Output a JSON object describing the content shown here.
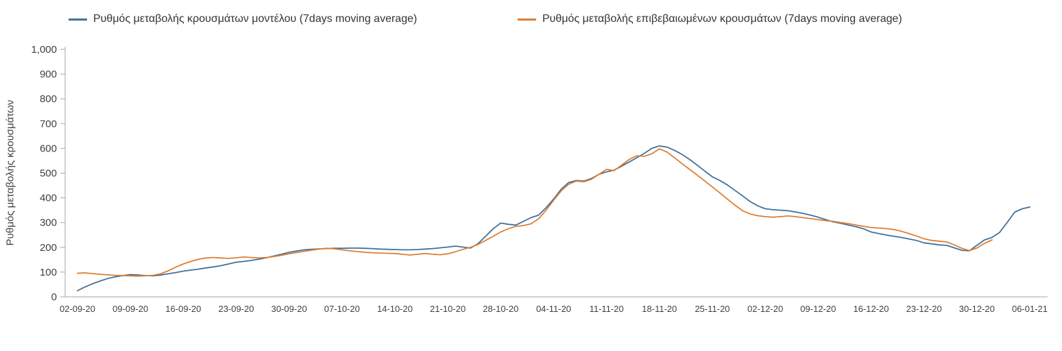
{
  "chart_data": {
    "type": "line",
    "title": "",
    "xlabel": "",
    "ylabel": "Ρυθμός μεταβολής κρουσμάτων",
    "ylim": [
      0,
      1000
    ],
    "ytick_step": 100,
    "grid": false,
    "legend_position": "top",
    "axis_color": "#a6a6a6",
    "x_tick_labels": [
      "02-09-20",
      "09-09-20",
      "16-09-20",
      "23-09-20",
      "30-09-20",
      "07-10-20",
      "14-10-20",
      "21-10-20",
      "28-10-20",
      "04-11-20",
      "11-11-20",
      "18-11-20",
      "25-11-20",
      "02-12-20",
      "09-12-20",
      "16-12-20",
      "23-12-20",
      "30-12-20",
      "06-01-21"
    ],
    "x_tick_days": [
      0,
      7,
      14,
      21,
      28,
      35,
      42,
      49,
      56,
      63,
      70,
      77,
      84,
      91,
      98,
      105,
      112,
      119,
      126
    ],
    "series": [
      {
        "name": "Ρυθμός μεταβολής κρουσμάτων μοντέλου (7days moving average)",
        "color": "#41719C",
        "start_day": 0,
        "values": [
          25,
          40,
          53,
          64,
          74,
          81,
          86,
          90,
          88,
          86,
          85,
          88,
          93,
          98,
          104,
          108,
          112,
          117,
          121,
          126,
          133,
          140,
          143,
          147,
          152,
          158,
          165,
          172,
          180,
          185,
          190,
          192,
          194,
          195,
          196,
          196,
          197,
          197,
          196,
          195,
          193,
          192,
          191,
          190,
          190,
          191,
          193,
          195,
          198,
          201,
          205,
          201,
          197,
          215,
          245,
          275,
          298,
          293,
          290,
          305,
          320,
          330,
          360,
          395,
          435,
          462,
          470,
          468,
          478,
          495,
          505,
          512,
          528,
          545,
          562,
          580,
          600,
          610,
          605,
          592,
          575,
          555,
          532,
          508,
          485,
          470,
          452,
          430,
          408,
          385,
          368,
          356,
          352,
          350,
          348,
          343,
          337,
          330,
          322,
          312,
          303,
          297,
          290,
          283,
          275,
          262,
          256,
          250,
          245,
          240,
          234,
          228,
          218,
          214,
          210,
          208,
          198,
          188,
          186,
          208,
          230,
          240,
          260,
          300,
          342,
          356,
          363
        ]
      },
      {
        "name": "Ρυθμός μεταβολής επιβεβαιωμένων κρουσμάτων (7days moving average)",
        "color": "#DE7E32",
        "start_day": 0,
        "values": [
          95,
          97,
          94,
          91,
          89,
          87,
          86,
          85,
          84,
          85,
          87,
          93,
          105,
          120,
          133,
          143,
          152,
          157,
          159,
          157,
          155,
          158,
          161,
          159,
          157,
          159,
          163,
          168,
          174,
          179,
          184,
          189,
          193,
          196,
          194,
          190,
          186,
          183,
          180,
          178,
          177,
          176,
          175,
          172,
          169,
          172,
          175,
          172,
          170,
          174,
          182,
          192,
          200,
          212,
          228,
          245,
          262,
          275,
          285,
          288,
          295,
          315,
          350,
          390,
          428,
          455,
          468,
          465,
          475,
          495,
          515,
          510,
          532,
          555,
          570,
          568,
          578,
          598,
          585,
          562,
          538,
          515,
          492,
          468,
          444,
          420,
          395,
          370,
          348,
          335,
          328,
          324,
          322,
          324,
          327,
          324,
          320,
          316,
          312,
          308,
          305,
          300,
          296,
          290,
          285,
          280,
          278,
          276,
          272,
          265,
          256,
          246,
          235,
          228,
          225,
          222,
          210,
          196,
          187,
          197,
          216,
          230
        ]
      }
    ]
  }
}
